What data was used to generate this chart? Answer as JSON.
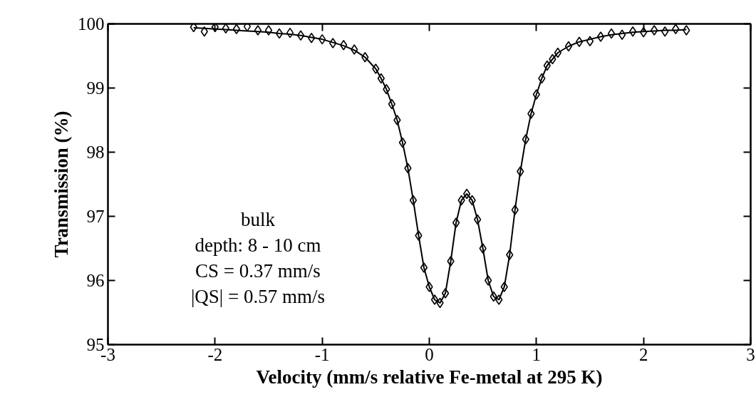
{
  "chart_data": {
    "type": "scatter",
    "xlabel": "Velocity (mm/s relative Fe-metal at 295 K)",
    "ylabel": "Transmission (%)",
    "xlim": [
      -3,
      3
    ],
    "ylim": [
      95,
      100
    ],
    "xticks": [
      -3,
      -2,
      -1,
      0,
      1,
      2,
      3
    ],
    "yticks": [
      95,
      96,
      97,
      98,
      99,
      100
    ],
    "x": [
      -2.2,
      -2.1,
      -2.0,
      -1.9,
      -1.8,
      -1.7,
      -1.6,
      -1.5,
      -1.4,
      -1.3,
      -1.2,
      -1.1,
      -1.0,
      -0.9,
      -0.8,
      -0.7,
      -0.6,
      -0.5,
      -0.45,
      -0.4,
      -0.35,
      -0.3,
      -0.25,
      -0.2,
      -0.15,
      -0.1,
      -0.05,
      0.0,
      0.05,
      0.1,
      0.15,
      0.2,
      0.25,
      0.3,
      0.35,
      0.4,
      0.45,
      0.5,
      0.55,
      0.6,
      0.65,
      0.7,
      0.75,
      0.8,
      0.85,
      0.9,
      0.95,
      1.0,
      1.05,
      1.1,
      1.15,
      1.2,
      1.3,
      1.4,
      1.5,
      1.6,
      1.7,
      1.8,
      1.9,
      2.0,
      2.1,
      2.2,
      2.3,
      2.4
    ],
    "series": [
      {
        "marker": "diamond",
        "color": "#000000",
        "values": [
          99.95,
          99.88,
          99.95,
          99.93,
          99.92,
          99.96,
          99.9,
          99.9,
          99.85,
          99.86,
          99.82,
          99.78,
          99.76,
          99.7,
          99.67,
          99.6,
          99.48,
          99.3,
          99.15,
          98.98,
          98.75,
          98.5,
          98.15,
          97.75,
          97.25,
          96.7,
          96.2,
          95.9,
          95.7,
          95.65,
          95.8,
          96.3,
          96.9,
          97.25,
          97.35,
          97.25,
          96.95,
          96.5,
          96.0,
          95.75,
          95.7,
          95.9,
          96.4,
          97.1,
          97.7,
          98.2,
          98.6,
          98.9,
          99.15,
          99.35,
          99.45,
          99.55,
          99.65,
          99.72,
          99.73,
          99.8,
          99.85,
          99.83,
          99.88,
          99.87,
          99.9,
          99.88,
          99.92,
          99.9
        ]
      },
      {
        "type": "line",
        "marker": "none",
        "color": "#000000",
        "line_style": "solid",
        "values": [
          99.94,
          99.93,
          99.92,
          99.91,
          99.9,
          99.89,
          99.88,
          99.87,
          99.85,
          99.84,
          99.82,
          99.79,
          99.76,
          99.71,
          99.66,
          99.59,
          99.48,
          99.3,
          99.15,
          98.98,
          98.75,
          98.5,
          98.15,
          97.75,
          97.25,
          96.7,
          96.2,
          95.9,
          95.7,
          95.65,
          95.8,
          96.3,
          96.9,
          97.25,
          97.35,
          97.25,
          96.95,
          96.5,
          96.0,
          95.75,
          95.7,
          95.9,
          96.4,
          97.1,
          97.7,
          98.2,
          98.6,
          98.9,
          99.15,
          99.35,
          99.45,
          99.55,
          99.65,
          99.72,
          99.76,
          99.8,
          99.83,
          99.85,
          99.87,
          99.88,
          99.89,
          99.9,
          99.9,
          99.91
        ]
      }
    ],
    "annotations": [
      "bulk",
      "depth: 8 - 10 cm",
      "CS = 0.37 mm/s",
      "|QS| = 0.57 mm/s"
    ]
  }
}
